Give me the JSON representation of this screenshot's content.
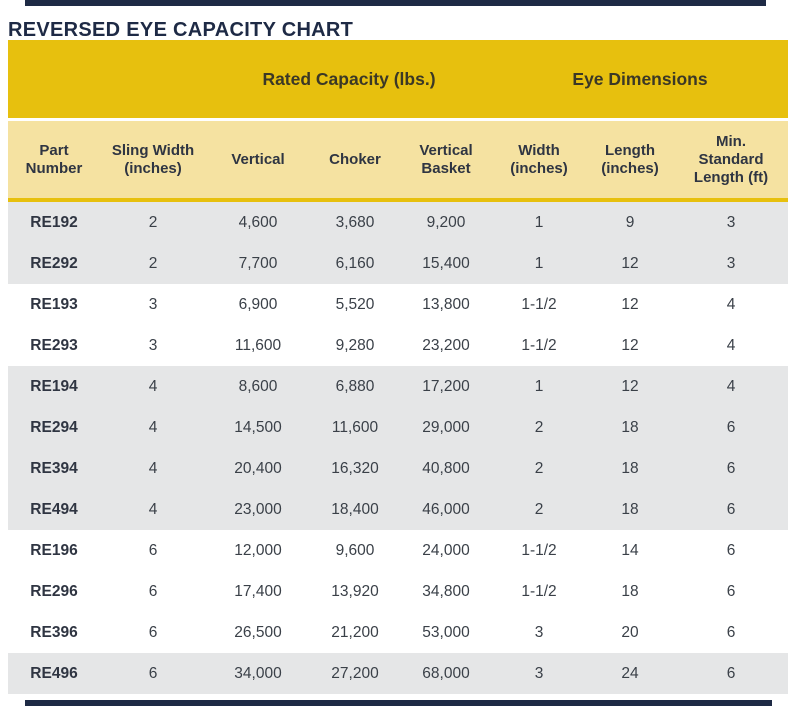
{
  "title": "REVERSED EYE CAPACITY CHART",
  "table": {
    "group_headers": {
      "rated_capacity": "Rated Capacity (lbs.)",
      "eye_dimensions": "Eye Dimensions"
    },
    "columns": [
      "Part Number",
      "Sling Width (inches)",
      "Vertical",
      "Choker",
      "Vertical Basket",
      "Width (inches)",
      "Length (inches)",
      "Min. Standard Length (ft)"
    ],
    "rows": [
      [
        "RE192",
        "2",
        "4,600",
        "3,680",
        "9,200",
        "1",
        "9",
        "3"
      ],
      [
        "RE292",
        "2",
        "7,700",
        "6,160",
        "15,400",
        "1",
        "12",
        "3"
      ],
      [
        "RE193",
        "3",
        "6,900",
        "5,520",
        "13,800",
        "1-1/2",
        "12",
        "4"
      ],
      [
        "RE293",
        "3",
        "11,600",
        "9,280",
        "23,200",
        "1-1/2",
        "12",
        "4"
      ],
      [
        "RE194",
        "4",
        "8,600",
        "6,880",
        "17,200",
        "1",
        "12",
        "4"
      ],
      [
        "RE294",
        "4",
        "14,500",
        "11,600",
        "29,000",
        "2",
        "18",
        "6"
      ],
      [
        "RE394",
        "4",
        "20,400",
        "16,320",
        "40,800",
        "2",
        "18",
        "6"
      ],
      [
        "RE494",
        "4",
        "23,000",
        "18,400",
        "46,000",
        "2",
        "18",
        "6"
      ],
      [
        "RE196",
        "6",
        "12,000",
        "9,600",
        "24,000",
        "1-1/2",
        "14",
        "6"
      ],
      [
        "RE296",
        "6",
        "17,400",
        "13,920",
        "34,800",
        "1-1/2",
        "18",
        "6"
      ],
      [
        "RE396",
        "6",
        "26,500",
        "21,200",
        "53,000",
        "3",
        "20",
        "6"
      ],
      [
        "RE496",
        "6",
        "34,000",
        "27,200",
        "68,000",
        "3",
        "24",
        "6"
      ]
    ]
  },
  "colors": {
    "gold": "#E7C00E",
    "light_yellow": "#F5E2A1",
    "row_gray": "#E5E6E7",
    "navy": "#1E2A45"
  },
  "chart_data": {
    "type": "table",
    "title": "REVERSED EYE CAPACITY CHART",
    "column_groups": [
      {
        "label": "Rated Capacity (lbs.)",
        "columns": [
          "Vertical",
          "Choker",
          "Vertical Basket"
        ]
      },
      {
        "label": "Eye Dimensions",
        "columns": [
          "Width (inches)",
          "Length (inches)",
          "Min. Standard Length (ft)"
        ]
      }
    ],
    "columns": [
      "Part Number",
      "Sling Width (inches)",
      "Vertical",
      "Choker",
      "Vertical Basket",
      "Width (inches)",
      "Length (inches)",
      "Min. Standard Length (ft)"
    ],
    "rows": [
      [
        "RE192",
        2,
        4600,
        3680,
        9200,
        "1",
        9,
        3
      ],
      [
        "RE292",
        2,
        7700,
        6160,
        15400,
        "1",
        12,
        3
      ],
      [
        "RE193",
        3,
        6900,
        5520,
        13800,
        "1-1/2",
        12,
        4
      ],
      [
        "RE293",
        3,
        11600,
        9280,
        23200,
        "1-1/2",
        12,
        4
      ],
      [
        "RE194",
        4,
        8600,
        6880,
        17200,
        "1",
        12,
        4
      ],
      [
        "RE294",
        4,
        14500,
        11600,
        29000,
        "2",
        18,
        6
      ],
      [
        "RE394",
        4,
        20400,
        16320,
        40800,
        "2",
        18,
        6
      ],
      [
        "RE494",
        4,
        23000,
        18400,
        46000,
        "2",
        18,
        6
      ],
      [
        "RE196",
        6,
        12000,
        9600,
        24000,
        "1-1/2",
        14,
        6
      ],
      [
        "RE296",
        6,
        17400,
        13920,
        34800,
        "1-1/2",
        18,
        6
      ],
      [
        "RE396",
        6,
        26500,
        21200,
        53000,
        "3",
        20,
        6
      ],
      [
        "RE496",
        6,
        34000,
        27200,
        68000,
        "3",
        24,
        6
      ]
    ]
  }
}
